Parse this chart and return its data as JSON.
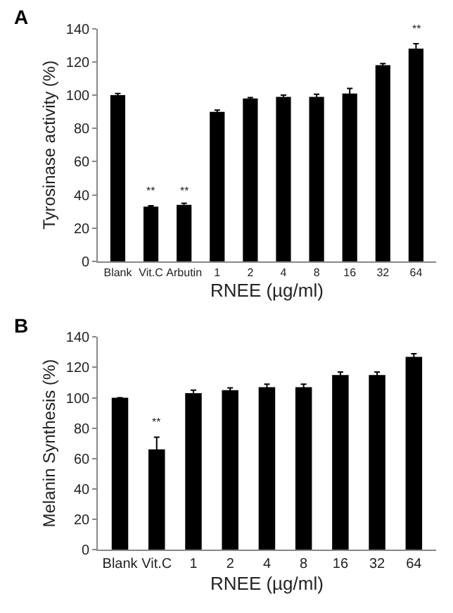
{
  "chart_data": [
    {
      "type": "bar",
      "title": "A",
      "xlabel": "RNEE (µg/ml)",
      "ylabel": "Tyrosinase activity (%)",
      "categories": [
        "Blank",
        "Vit.C",
        "Arbutin",
        "1",
        "2",
        "4",
        "8",
        "16",
        "32",
        "64"
      ],
      "values": [
        100,
        33,
        34,
        90,
        98,
        99,
        99,
        101,
        118,
        128
      ],
      "errors": [
        1,
        0.5,
        1,
        1,
        0.5,
        1,
        1.5,
        3,
        1,
        3
      ],
      "color": "#000000",
      "ylim": [
        0,
        140
      ],
      "yticks": [
        0,
        20,
        40,
        60,
        80,
        100,
        120,
        140
      ],
      "annotations": [
        {
          "text": "**",
          "x": "Vit.C",
          "y": 37
        },
        {
          "text": "**",
          "x": "Arbutin",
          "y": 37
        },
        {
          "text": "**",
          "x": "64",
          "y": 134
        }
      ]
    },
    {
      "type": "bar",
      "title": "B",
      "xlabel": "RNEE (µg/ml)",
      "ylabel": "Melanin Synthesis (%)",
      "categories": [
        "Blank",
        "Vit.C",
        "1",
        "2",
        "4",
        "8",
        "16",
        "32",
        "64"
      ],
      "values": [
        100,
        66,
        103,
        105,
        107,
        107,
        115,
        115,
        127
      ],
      "errors": [
        0,
        8,
        2,
        1.5,
        2,
        2,
        2,
        2,
        2
      ],
      "color": "#000000",
      "ylim": [
        0,
        140
      ],
      "yticks": [
        0,
        20,
        40,
        60,
        80,
        100,
        120,
        140
      ],
      "annotations": [
        {
          "text": "**",
          "x": "Vit.C",
          "y": 78
        }
      ]
    }
  ]
}
